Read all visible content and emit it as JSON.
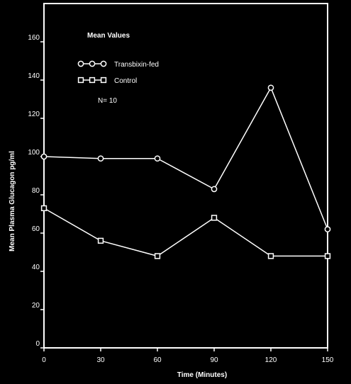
{
  "chart_data": {
    "type": "line",
    "title": "",
    "xlabel": "Time (Minutes)",
    "ylabel": "Mean Plasma Glucagon pg/ml",
    "x": [
      0,
      30,
      60,
      90,
      120,
      150
    ],
    "xticks": [
      "0",
      "30",
      "60",
      "90",
      "120",
      "150"
    ],
    "yticks": [
      "0",
      "20",
      "40",
      "60",
      "80",
      "100",
      "120",
      "140",
      "160"
    ],
    "ylim": [
      0,
      180
    ],
    "xlim": [
      0,
      150
    ],
    "grid": false,
    "legend_position": "top-left",
    "series": [
      {
        "name": "Transbixin-fed",
        "marker": "circle",
        "values": [
          100,
          99,
          99,
          83,
          136,
          62
        ]
      },
      {
        "name": "Control",
        "marker": "square",
        "values": [
          73,
          56,
          48,
          68,
          48,
          48
        ]
      }
    ],
    "annotations": {
      "legend_heading": "Mean Values",
      "n_label": "N= 10"
    },
    "colors": {
      "background": "#000000",
      "foreground": "#ffffff"
    }
  }
}
